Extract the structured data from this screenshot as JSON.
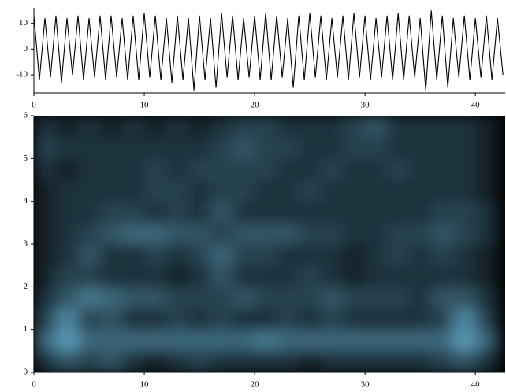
{
  "chart_data": [
    {
      "type": "line",
      "color": "#000000",
      "x": [
        0,
        0.5,
        1,
        1.5,
        2,
        2.5,
        3,
        3.5,
        4,
        4.5,
        5,
        5.5,
        6,
        6.5,
        7,
        7.5,
        8,
        8.5,
        9,
        9.5,
        10,
        10.5,
        11,
        11.5,
        12,
        12.5,
        13,
        13.5,
        14,
        14.5,
        15,
        15.5,
        16,
        16.5,
        17,
        17.5,
        18,
        18.5,
        19,
        19.5,
        20,
        20.5,
        21,
        21.5,
        22,
        22.5,
        23,
        23.5,
        24,
        24.5,
        25,
        25.5,
        26,
        26.5,
        27,
        27.5,
        28,
        28.5,
        29,
        29.5,
        30,
        30.5,
        31,
        31.5,
        32,
        32.5,
        33,
        33.5,
        34,
        34.5,
        35,
        35.5,
        36,
        36.5,
        37,
        37.5,
        38,
        38.5,
        39,
        39.5,
        40,
        40.5,
        41,
        41.5,
        42,
        42.5
      ],
      "values": [
        13,
        -12,
        12,
        -11,
        13,
        -13,
        12,
        -10,
        13,
        -12,
        12,
        -11,
        13,
        -12,
        13,
        -11,
        12,
        -12,
        13,
        -12,
        14,
        -11,
        13,
        -12,
        12,
        -13,
        13,
        -12,
        12,
        -16,
        13,
        -12,
        12,
        -15,
        14,
        -11,
        13,
        -12,
        12,
        -11,
        13,
        -12,
        14,
        -12,
        13,
        -11,
        12,
        -15,
        13,
        -12,
        14,
        -11,
        13,
        -12,
        12,
        -11,
        13,
        -12,
        14,
        -11,
        13,
        -12,
        12,
        -11,
        13,
        -12,
        14,
        -12,
        13,
        -11,
        12,
        -16,
        15,
        -12,
        13,
        -15,
        12,
        -11,
        13,
        -12,
        12,
        -11,
        13,
        -12,
        12,
        -10
      ],
      "xlim": [
        0,
        42.7
      ],
      "ylim": [
        -17,
        16
      ],
      "xticks": [
        0,
        10,
        20,
        30,
        40
      ],
      "yticks": [
        -10,
        0,
        10
      ]
    },
    {
      "type": "heatmap",
      "colormap": [
        "#000000",
        "#62a8c8"
      ],
      "x": [
        1,
        3,
        5,
        7,
        9,
        11,
        13,
        15,
        17,
        19,
        21,
        23,
        25,
        27,
        29,
        31,
        33,
        35,
        37,
        39,
        41
      ],
      "y": [
        0.25,
        0.75,
        1.25,
        1.75,
        2.25,
        2.75,
        3.25,
        3.75,
        4.25,
        4.75,
        5.25,
        5.75
      ],
      "z": [
        [
          0.3,
          0.5,
          0.4,
          0.5,
          0.3,
          0.2,
          0.3,
          0.4,
          0.3,
          0.3,
          0.3,
          0.3,
          0.2,
          0.3,
          0.3,
          0.3,
          0.3,
          0.3,
          0.4,
          0.5,
          0.3
        ],
        [
          0.6,
          0.9,
          0.6,
          0.6,
          0.6,
          0.6,
          0.6,
          0.6,
          0.6,
          0.6,
          0.7,
          0.6,
          0.6,
          0.6,
          0.6,
          0.6,
          0.6,
          0.6,
          0.6,
          0.9,
          0.6
        ],
        [
          0.4,
          0.8,
          0.4,
          0.5,
          0.3,
          0.3,
          0.4,
          0.3,
          0.4,
          0.3,
          0.3,
          0.4,
          0.3,
          0.4,
          0.3,
          0.3,
          0.3,
          0.3,
          0.4,
          0.8,
          0.4
        ],
        [
          0.3,
          0.5,
          0.7,
          0.6,
          0.5,
          0.5,
          0.4,
          0.4,
          0.4,
          0.5,
          0.4,
          0.4,
          0.4,
          0.5,
          0.4,
          0.4,
          0.4,
          0.3,
          0.5,
          0.5,
          0.3
        ],
        [
          0.2,
          0.4,
          0.4,
          0.3,
          0.3,
          0.3,
          0.2,
          0.3,
          0.5,
          0.3,
          0.3,
          0.3,
          0.4,
          0.3,
          0.2,
          0.3,
          0.3,
          0.3,
          0.3,
          0.3,
          0.2
        ],
        [
          0.2,
          0.3,
          0.5,
          0.3,
          0.3,
          0.4,
          0.3,
          0.4,
          0.6,
          0.4,
          0.4,
          0.3,
          0.3,
          0.3,
          0.2,
          0.3,
          0.4,
          0.3,
          0.4,
          0.3,
          0.2
        ],
        [
          0.2,
          0.3,
          0.4,
          0.5,
          0.6,
          0.6,
          0.5,
          0.5,
          0.4,
          0.5,
          0.5,
          0.5,
          0.4,
          0.4,
          0.3,
          0.3,
          0.4,
          0.4,
          0.5,
          0.4,
          0.3
        ],
        [
          0.2,
          0.3,
          0.3,
          0.4,
          0.4,
          0.3,
          0.4,
          0.3,
          0.5,
          0.3,
          0.3,
          0.3,
          0.3,
          0.3,
          0.3,
          0.3,
          0.3,
          0.3,
          0.4,
          0.4,
          0.3
        ],
        [
          0.2,
          0.3,
          0.3,
          0.3,
          0.3,
          0.4,
          0.4,
          0.3,
          0.4,
          0.4,
          0.3,
          0.3,
          0.4,
          0.3,
          0.3,
          0.3,
          0.3,
          0.3,
          0.3,
          0.3,
          0.2
        ],
        [
          0.3,
          0.2,
          0.3,
          0.3,
          0.3,
          0.4,
          0.3,
          0.4,
          0.4,
          0.4,
          0.4,
          0.3,
          0.3,
          0.4,
          0.3,
          0.3,
          0.4,
          0.3,
          0.3,
          0.3,
          0.2
        ],
        [
          0.4,
          0.3,
          0.3,
          0.3,
          0.3,
          0.3,
          0.3,
          0.3,
          0.4,
          0.5,
          0.4,
          0.4,
          0.3,
          0.3,
          0.4,
          0.4,
          0.3,
          0.3,
          0.3,
          0.3,
          0.2
        ],
        [
          0.3,
          0.2,
          0.3,
          0.2,
          0.3,
          0.2,
          0.3,
          0.2,
          0.3,
          0.4,
          0.4,
          0.3,
          0.3,
          0.3,
          0.4,
          0.5,
          0.3,
          0.3,
          0.3,
          0.3,
          0.2
        ]
      ],
      "xlim": [
        0,
        42.7
      ],
      "ylim": [
        0,
        6
      ],
      "xticks": [
        0,
        10,
        20,
        30,
        40
      ],
      "yticks": [
        0,
        1,
        2,
        3,
        4,
        5,
        6
      ]
    }
  ]
}
